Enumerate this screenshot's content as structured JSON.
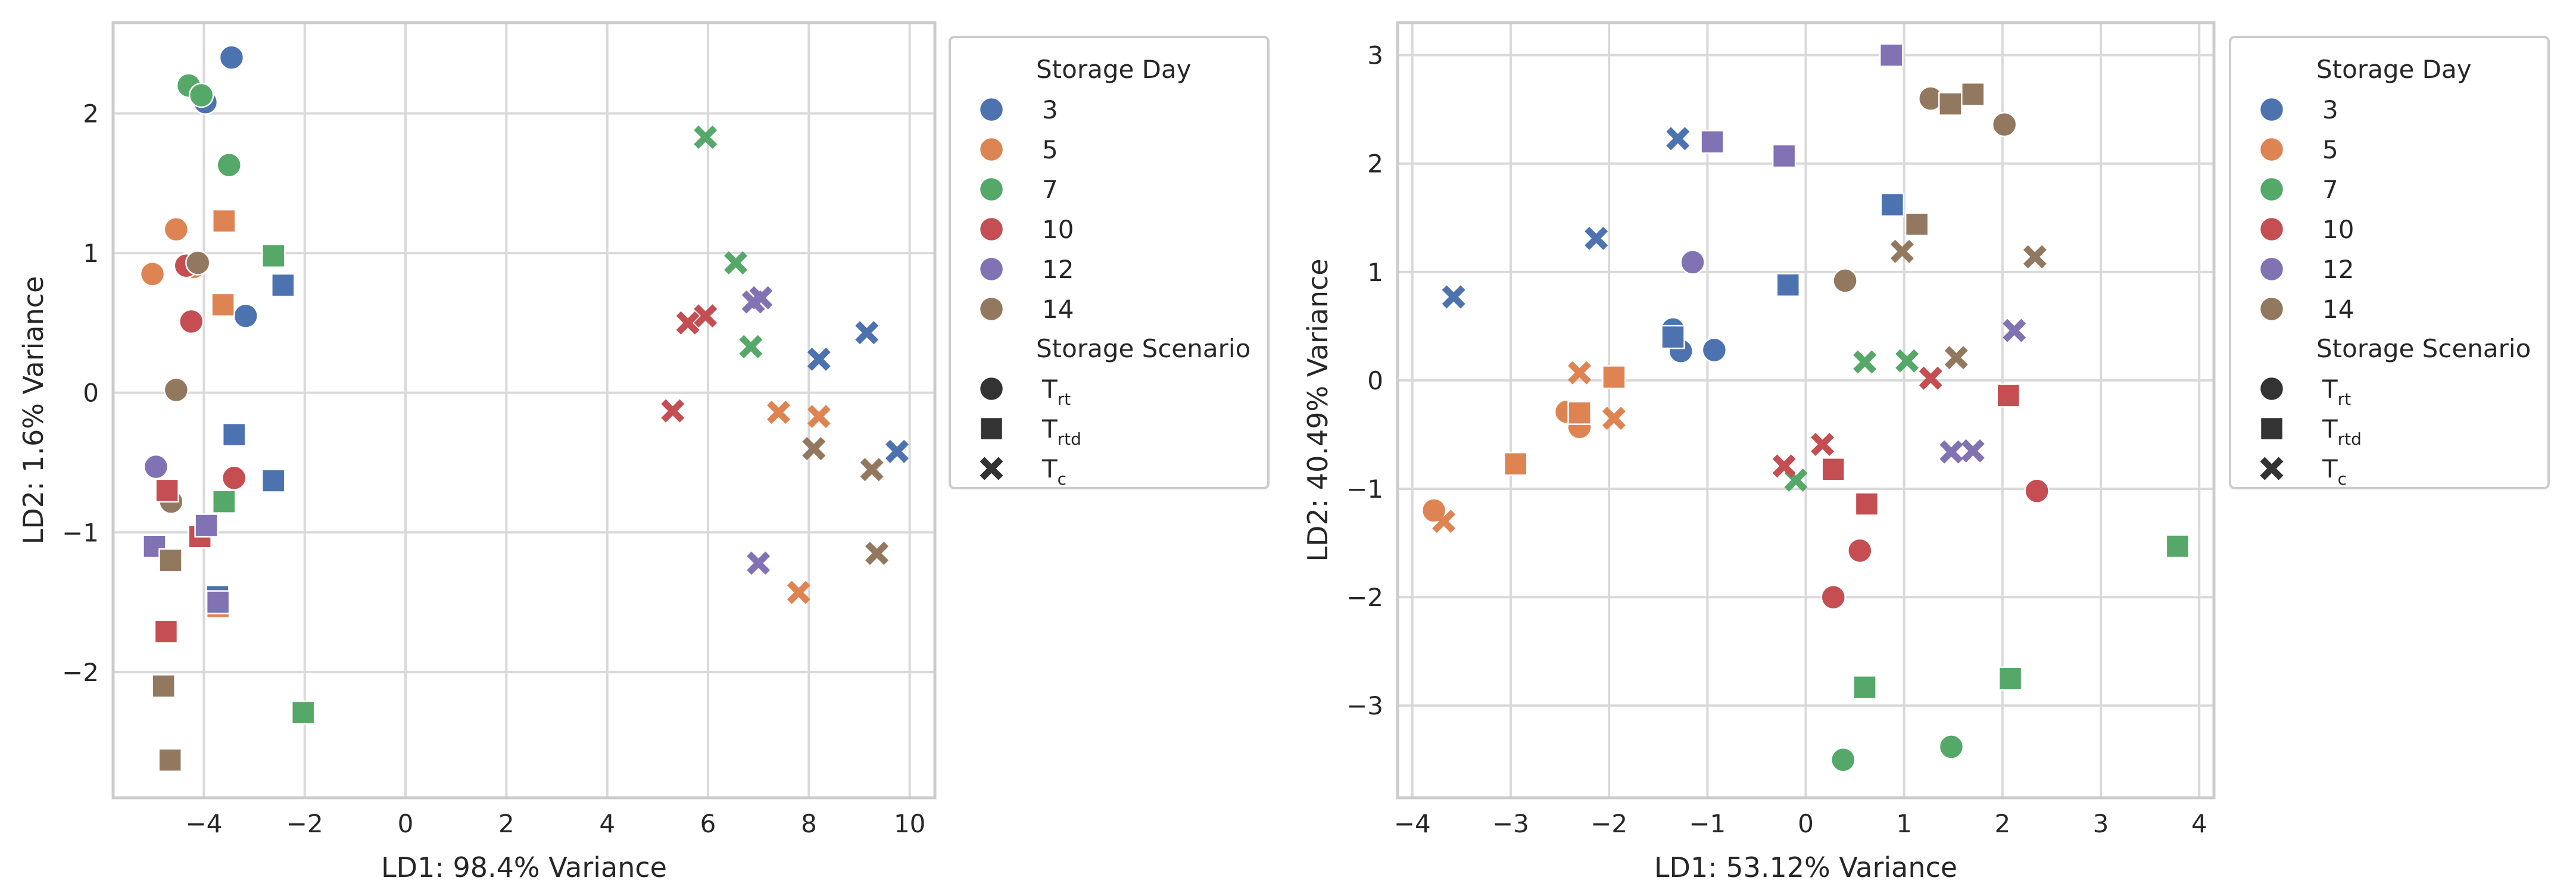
{
  "palette": {
    "3": "#4c72b0",
    "5": "#dd8452",
    "7": "#55a868",
    "10": "#c44e52",
    "12": "#8172b3",
    "14": "#937860",
    "grid": "#d9d9d9",
    "spine": "#cccccc",
    "neutral": "#333333"
  },
  "legend": {
    "day_title": "Storage Day",
    "days": [
      "3",
      "5",
      "7",
      "10",
      "12",
      "14"
    ],
    "scenario_title": "Storage Scenario",
    "scenarios": [
      {
        "key": "rt",
        "marker": "circle",
        "main": "T",
        "sub": "rt"
      },
      {
        "key": "rtd",
        "marker": "square",
        "main": "T",
        "sub": "rtd"
      },
      {
        "key": "c",
        "marker": "x",
        "main": "T",
        "sub": "c"
      }
    ]
  },
  "chart_data": [
    {
      "type": "scatter",
      "xlabel": "LD1: 98.4% Variance",
      "ylabel": "LD2: 1.6% Variance",
      "xlim": [
        -5.8,
        10.5
      ],
      "ylim": [
        -2.9,
        2.65
      ],
      "xticks": [
        -4,
        -2,
        0,
        2,
        4,
        6,
        8,
        10
      ],
      "xtick_labels": [
        "−4",
        "−2",
        "0",
        "2",
        "4",
        "6",
        "8",
        "10"
      ],
      "yticks": [
        -2,
        -1,
        0,
        1,
        2
      ],
      "ytick_labels": [
        "−2",
        "−1",
        "0",
        "1",
        "2"
      ],
      "grid": true,
      "legend_position": "outside-right",
      "points": [
        {
          "x": -3.45,
          "y": 2.4,
          "day": "3",
          "scenario": "rt"
        },
        {
          "x": -3.97,
          "y": 2.08,
          "day": "3",
          "scenario": "rt"
        },
        {
          "x": -3.17,
          "y": 0.55,
          "day": "3",
          "scenario": "rt"
        },
        {
          "x": -4.3,
          "y": 2.2,
          "day": "7",
          "scenario": "rt"
        },
        {
          "x": -4.05,
          "y": 2.13,
          "day": "7",
          "scenario": "rt"
        },
        {
          "x": -3.5,
          "y": 1.63,
          "day": "7",
          "scenario": "rt"
        },
        {
          "x": -4.55,
          "y": 1.17,
          "day": "5",
          "scenario": "rt"
        },
        {
          "x": -5.02,
          "y": 0.85,
          "day": "5",
          "scenario": "rt"
        },
        {
          "x": -4.3,
          "y": 0.92,
          "day": "5",
          "scenario": "rt"
        },
        {
          "x": -4.2,
          "y": 0.9,
          "day": "5",
          "scenario": "rt"
        },
        {
          "x": -4.35,
          "y": 0.91,
          "day": "10",
          "scenario": "rt"
        },
        {
          "x": -4.25,
          "y": 0.51,
          "day": "10",
          "scenario": "rt"
        },
        {
          "x": -3.4,
          "y": -0.61,
          "day": "10",
          "scenario": "rt"
        },
        {
          "x": -4.12,
          "y": 0.93,
          "day": "14",
          "scenario": "rt"
        },
        {
          "x": -4.55,
          "y": 0.02,
          "day": "14",
          "scenario": "rt"
        },
        {
          "x": -4.65,
          "y": -0.78,
          "day": "14",
          "scenario": "rt"
        },
        {
          "x": -4.95,
          "y": -0.53,
          "day": "12",
          "scenario": "rt"
        },
        {
          "x": -3.6,
          "y": 1.23,
          "day": "5",
          "scenario": "rtd"
        },
        {
          "x": -3.62,
          "y": 0.63,
          "day": "5",
          "scenario": "rtd"
        },
        {
          "x": -3.72,
          "y": -1.53,
          "day": "5",
          "scenario": "rtd"
        },
        {
          "x": -2.62,
          "y": 0.98,
          "day": "7",
          "scenario": "rtd"
        },
        {
          "x": -3.6,
          "y": -0.78,
          "day": "7",
          "scenario": "rtd"
        },
        {
          "x": -2.03,
          "y": -2.29,
          "day": "7",
          "scenario": "rtd"
        },
        {
          "x": -2.43,
          "y": 0.77,
          "day": "3",
          "scenario": "rtd"
        },
        {
          "x": -3.4,
          "y": -0.3,
          "day": "3",
          "scenario": "rtd"
        },
        {
          "x": -2.62,
          "y": -0.63,
          "day": "3",
          "scenario": "rtd"
        },
        {
          "x": -3.73,
          "y": -1.46,
          "day": "3",
          "scenario": "rtd"
        },
        {
          "x": -4.73,
          "y": -0.7,
          "day": "10",
          "scenario": "rtd"
        },
        {
          "x": -4.08,
          "y": -1.03,
          "day": "10",
          "scenario": "rtd"
        },
        {
          "x": -4.75,
          "y": -1.71,
          "day": "10",
          "scenario": "rtd"
        },
        {
          "x": -3.95,
          "y": -0.95,
          "day": "12",
          "scenario": "rtd"
        },
        {
          "x": -4.98,
          "y": -1.1,
          "day": "12",
          "scenario": "rtd"
        },
        {
          "x": -3.72,
          "y": -1.5,
          "day": "12",
          "scenario": "rtd"
        },
        {
          "x": -4.66,
          "y": -1.2,
          "day": "14",
          "scenario": "rtd"
        },
        {
          "x": -4.8,
          "y": -2.1,
          "day": "14",
          "scenario": "rtd"
        },
        {
          "x": -4.67,
          "y": -2.63,
          "day": "14",
          "scenario": "rtd"
        },
        {
          "x": 5.95,
          "y": 1.83,
          "day": "7",
          "scenario": "c"
        },
        {
          "x": 6.55,
          "y": 0.93,
          "day": "7",
          "scenario": "c"
        },
        {
          "x": 6.85,
          "y": 0.33,
          "day": "7",
          "scenario": "c"
        },
        {
          "x": 5.6,
          "y": 0.5,
          "day": "10",
          "scenario": "c"
        },
        {
          "x": 5.95,
          "y": 0.55,
          "day": "10",
          "scenario": "c"
        },
        {
          "x": 5.3,
          "y": -0.13,
          "day": "10",
          "scenario": "c"
        },
        {
          "x": 6.9,
          "y": 0.65,
          "day": "12",
          "scenario": "c"
        },
        {
          "x": 7.05,
          "y": 0.68,
          "day": "12",
          "scenario": "c"
        },
        {
          "x": 7.0,
          "y": -1.22,
          "day": "12",
          "scenario": "c"
        },
        {
          "x": 7.4,
          "y": -0.14,
          "day": "5",
          "scenario": "c"
        },
        {
          "x": 8.2,
          "y": -0.17,
          "day": "5",
          "scenario": "c"
        },
        {
          "x": 7.8,
          "y": -1.43,
          "day": "5",
          "scenario": "c"
        },
        {
          "x": 8.1,
          "y": -0.4,
          "day": "14",
          "scenario": "c"
        },
        {
          "x": 9.25,
          "y": -0.55,
          "day": "14",
          "scenario": "c"
        },
        {
          "x": 9.35,
          "y": -1.15,
          "day": "14",
          "scenario": "c"
        },
        {
          "x": 8.2,
          "y": 0.24,
          "day": "3",
          "scenario": "c"
        },
        {
          "x": 9.15,
          "y": 0.43,
          "day": "3",
          "scenario": "c"
        },
        {
          "x": 9.75,
          "y": -0.42,
          "day": "3",
          "scenario": "c"
        }
      ]
    },
    {
      "type": "scatter",
      "xlabel": "LD1: 53.12% Variance",
      "ylabel": "LD2: 40.49% Variance",
      "xlim": [
        -4.15,
        4.15
      ],
      "ylim": [
        -3.85,
        3.3
      ],
      "xticks": [
        -4,
        -3,
        -2,
        -1,
        0,
        1,
        2,
        3,
        4
      ],
      "xtick_labels": [
        "−4",
        "−3",
        "−2",
        "−1",
        "0",
        "1",
        "2",
        "3",
        "4"
      ],
      "yticks": [
        -3,
        -2,
        -1,
        0,
        1,
        2,
        3
      ],
      "ytick_labels": [
        "−3",
        "−2",
        "−1",
        "0",
        "1",
        "2",
        "3"
      ],
      "grid": true,
      "legend_position": "outside-right",
      "points": [
        {
          "x": -1.35,
          "y": 0.47,
          "day": "3",
          "scenario": "rt"
        },
        {
          "x": -1.27,
          "y": 0.27,
          "day": "3",
          "scenario": "rt"
        },
        {
          "x": -0.93,
          "y": 0.28,
          "day": "3",
          "scenario": "rt"
        },
        {
          "x": -2.43,
          "y": -0.29,
          "day": "5",
          "scenario": "rt"
        },
        {
          "x": -2.3,
          "y": -0.43,
          "day": "5",
          "scenario": "rt"
        },
        {
          "x": -3.78,
          "y": -1.2,
          "day": "5",
          "scenario": "rt"
        },
        {
          "x": 0.38,
          "y": -3.5,
          "day": "7",
          "scenario": "rt"
        },
        {
          "x": 1.48,
          "y": -3.38,
          "day": "7",
          "scenario": "rt"
        },
        {
          "x": 0.55,
          "y": -1.57,
          "day": "10",
          "scenario": "rt"
        },
        {
          "x": 0.28,
          "y": -2.0,
          "day": "10",
          "scenario": "rt"
        },
        {
          "x": 2.35,
          "y": -1.02,
          "day": "10",
          "scenario": "rt"
        },
        {
          "x": -1.15,
          "y": 1.09,
          "day": "12",
          "scenario": "rt"
        },
        {
          "x": 0.4,
          "y": 0.92,
          "day": "14",
          "scenario": "rt"
        },
        {
          "x": 1.27,
          "y": 2.6,
          "day": "14",
          "scenario": "rt"
        },
        {
          "x": 2.02,
          "y": 2.36,
          "day": "14",
          "scenario": "rt"
        },
        {
          "x": -1.35,
          "y": 0.4,
          "day": "3",
          "scenario": "rtd"
        },
        {
          "x": -0.18,
          "y": 0.88,
          "day": "3",
          "scenario": "rtd"
        },
        {
          "x": 0.88,
          "y": 1.62,
          "day": "3",
          "scenario": "rtd"
        },
        {
          "x": -2.3,
          "y": -0.3,
          "day": "5",
          "scenario": "rtd"
        },
        {
          "x": -1.95,
          "y": 0.03,
          "day": "5",
          "scenario": "rtd"
        },
        {
          "x": -2.95,
          "y": -0.77,
          "day": "5",
          "scenario": "rtd"
        },
        {
          "x": 0.6,
          "y": -2.83,
          "day": "7",
          "scenario": "rtd"
        },
        {
          "x": 2.08,
          "y": -2.75,
          "day": "7",
          "scenario": "rtd"
        },
        {
          "x": 3.78,
          "y": -1.53,
          "day": "7",
          "scenario": "rtd"
        },
        {
          "x": 0.28,
          "y": -0.82,
          "day": "10",
          "scenario": "rtd"
        },
        {
          "x": 0.62,
          "y": -1.14,
          "day": "10",
          "scenario": "rtd"
        },
        {
          "x": 2.06,
          "y": -0.14,
          "day": "10",
          "scenario": "rtd"
        },
        {
          "x": -0.95,
          "y": 2.2,
          "day": "12",
          "scenario": "rtd"
        },
        {
          "x": -0.22,
          "y": 2.07,
          "day": "12",
          "scenario": "rtd"
        },
        {
          "x": 0.87,
          "y": 3.0,
          "day": "12",
          "scenario": "rtd"
        },
        {
          "x": 1.13,
          "y": 1.44,
          "day": "14",
          "scenario": "rtd"
        },
        {
          "x": 1.47,
          "y": 2.55,
          "day": "14",
          "scenario": "rtd"
        },
        {
          "x": 1.7,
          "y": 2.64,
          "day": "14",
          "scenario": "rtd"
        },
        {
          "x": -1.3,
          "y": 2.23,
          "day": "3",
          "scenario": "c"
        },
        {
          "x": -2.13,
          "y": 1.31,
          "day": "3",
          "scenario": "c"
        },
        {
          "x": -3.58,
          "y": 0.77,
          "day": "3",
          "scenario": "c"
        },
        {
          "x": -2.3,
          "y": 0.07,
          "day": "5",
          "scenario": "c"
        },
        {
          "x": -1.95,
          "y": -0.35,
          "day": "5",
          "scenario": "c"
        },
        {
          "x": -3.68,
          "y": -1.3,
          "day": "5",
          "scenario": "c"
        },
        {
          "x": 0.6,
          "y": 0.17,
          "day": "7",
          "scenario": "c"
        },
        {
          "x": 1.03,
          "y": 0.18,
          "day": "7",
          "scenario": "c"
        },
        {
          "x": -0.1,
          "y": -0.92,
          "day": "7",
          "scenario": "c"
        },
        {
          "x": 1.27,
          "y": 0.02,
          "day": "10",
          "scenario": "c"
        },
        {
          "x": 0.17,
          "y": -0.59,
          "day": "10",
          "scenario": "c"
        },
        {
          "x": -0.22,
          "y": -0.79,
          "day": "10",
          "scenario": "c"
        },
        {
          "x": 2.12,
          "y": 0.46,
          "day": "12",
          "scenario": "c"
        },
        {
          "x": 1.48,
          "y": -0.66,
          "day": "12",
          "scenario": "c"
        },
        {
          "x": 1.7,
          "y": -0.65,
          "day": "12",
          "scenario": "c"
        },
        {
          "x": 0.98,
          "y": 1.19,
          "day": "14",
          "scenario": "c"
        },
        {
          "x": 2.33,
          "y": 1.14,
          "day": "14",
          "scenario": "c"
        },
        {
          "x": 1.53,
          "y": 0.21,
          "day": "14",
          "scenario": "c"
        }
      ]
    }
  ]
}
